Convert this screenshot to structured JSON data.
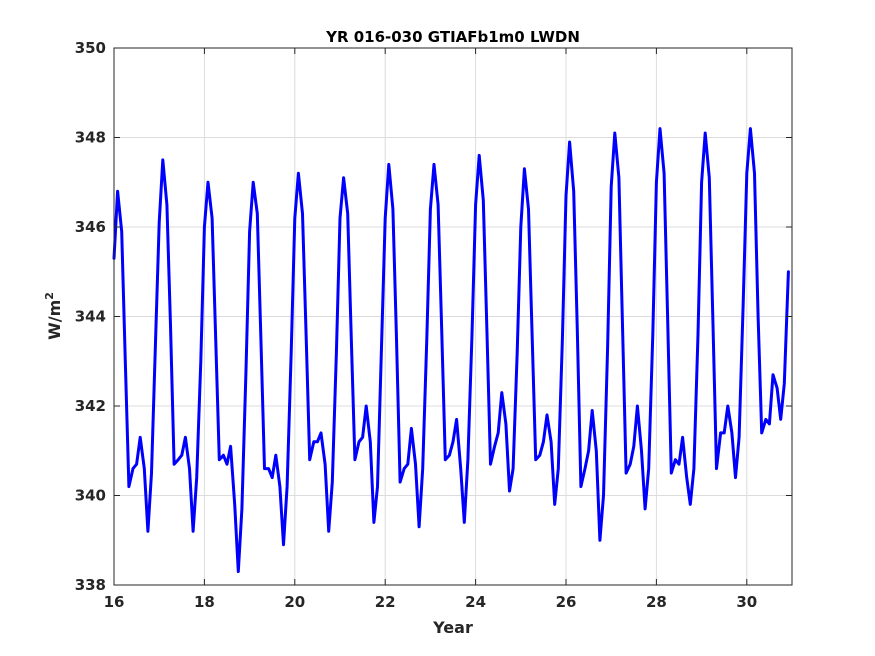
{
  "chart_data": {
    "type": "line",
    "title": "YR 016-030 GTIAFb1m0 LWDN",
    "xlabel": "Year",
    "ylabel": "W/m",
    "ylabel_superscript": "2",
    "xlim": [
      16,
      31
    ],
    "ylim": [
      338,
      350
    ],
    "xticks": [
      16,
      18,
      20,
      22,
      24,
      26,
      28,
      30
    ],
    "yticks": [
      338,
      340,
      342,
      344,
      346,
      348,
      350
    ],
    "grid": true,
    "legend": "none",
    "line_color": "#0000ff",
    "series": [
      {
        "x": [
          16.0,
          16.08,
          16.17,
          16.25,
          16.33,
          16.42,
          16.5,
          16.58,
          16.67,
          16.75,
          16.83,
          16.92,
          17.0,
          17.08,
          17.17,
          17.25,
          17.33,
          17.42,
          17.5,
          17.58,
          17.67,
          17.75,
          17.83,
          17.92,
          18.0,
          18.08,
          18.17,
          18.25,
          18.33,
          18.42,
          18.5,
          18.58,
          18.67,
          18.75,
          18.83,
          18.92,
          19.0,
          19.08,
          19.17,
          19.25,
          19.33,
          19.42,
          19.5,
          19.58,
          19.67,
          19.75,
          19.83,
          19.92,
          20.0,
          20.08,
          20.17,
          20.25,
          20.33,
          20.42,
          20.5,
          20.58,
          20.67,
          20.75,
          20.83,
          20.92,
          21.0,
          21.08,
          21.17,
          21.25,
          21.33,
          21.42,
          21.5,
          21.58,
          21.67,
          21.75,
          21.83,
          21.92,
          22.0,
          22.08,
          22.17,
          22.25,
          22.33,
          22.42,
          22.5,
          22.58,
          22.67,
          22.75,
          22.83,
          22.92,
          23.0,
          23.08,
          23.17,
          23.25,
          23.33,
          23.42,
          23.5,
          23.58,
          23.67,
          23.75,
          23.83,
          23.92,
          24.0,
          24.08,
          24.17,
          24.25,
          24.33,
          24.42,
          24.5,
          24.58,
          24.67,
          24.75,
          24.83,
          24.92,
          25.0,
          25.08,
          25.17,
          25.25,
          25.33,
          25.42,
          25.5,
          25.58,
          25.67,
          25.75,
          25.83,
          25.92,
          26.0,
          26.08,
          26.17,
          26.25,
          26.33,
          26.42,
          26.5,
          26.58,
          26.67,
          26.75,
          26.83,
          26.92,
          27.0,
          27.08,
          27.17,
          27.25,
          27.33,
          27.42,
          27.5,
          27.58,
          27.67,
          27.75,
          27.83,
          27.92,
          28.0,
          28.08,
          28.17,
          28.25,
          28.33,
          28.42,
          28.5,
          28.58,
          28.67,
          28.75,
          28.83,
          28.92,
          29.0,
          29.08,
          29.17,
          29.25,
          29.33,
          29.42,
          29.5,
          29.58,
          29.67,
          29.75,
          29.83,
          29.92,
          30.0,
          30.08,
          30.17,
          30.25,
          30.33,
          30.42,
          30.5,
          30.58,
          30.67,
          30.75,
          30.83,
          30.92
        ],
        "y": [
          345.3,
          346.8,
          345.9,
          343.0,
          340.2,
          340.6,
          340.7,
          341.3,
          340.6,
          339.2,
          340.5,
          343.5,
          346.1,
          347.5,
          346.5,
          343.8,
          340.7,
          340.8,
          340.9,
          341.3,
          340.6,
          339.2,
          340.4,
          343.0,
          346.0,
          347.0,
          346.2,
          343.5,
          340.8,
          340.9,
          340.7,
          341.1,
          339.8,
          338.3,
          339.7,
          342.8,
          345.9,
          347.0,
          346.3,
          343.5,
          340.6,
          340.6,
          340.4,
          340.9,
          340.2,
          338.9,
          340.2,
          343.2,
          346.2,
          347.2,
          346.3,
          343.6,
          340.8,
          341.2,
          341.2,
          341.4,
          340.7,
          339.2,
          340.3,
          343.2,
          346.2,
          347.1,
          346.3,
          343.5,
          340.8,
          341.2,
          341.3,
          342.0,
          341.2,
          339.4,
          340.2,
          343.4,
          346.2,
          347.4,
          346.4,
          343.5,
          340.3,
          340.6,
          340.7,
          341.5,
          340.7,
          339.3,
          340.6,
          343.5,
          346.4,
          347.4,
          346.5,
          343.7,
          340.8,
          340.9,
          341.2,
          341.7,
          340.6,
          339.4,
          340.8,
          343.6,
          346.5,
          347.6,
          346.6,
          343.7,
          340.7,
          341.1,
          341.4,
          342.3,
          341.6,
          340.1,
          340.6,
          343.2,
          346.0,
          347.3,
          346.4,
          343.6,
          340.8,
          340.9,
          341.2,
          341.8,
          341.2,
          339.8,
          340.6,
          343.5,
          346.7,
          347.9,
          346.8,
          343.7,
          340.2,
          340.6,
          341.0,
          341.9,
          341.0,
          339.0,
          340.0,
          343.3,
          346.9,
          348.1,
          347.1,
          343.8,
          340.5,
          340.7,
          341.1,
          342.0,
          341.0,
          339.7,
          340.6,
          343.6,
          347.0,
          348.2,
          347.2,
          343.9,
          340.5,
          340.8,
          340.7,
          341.3,
          340.4,
          339.8,
          340.6,
          343.6,
          347.0,
          348.1,
          347.1,
          343.9,
          340.6,
          341.4,
          341.4,
          342.0,
          341.4,
          340.4,
          341.3,
          344.3,
          347.2,
          348.2,
          347.2,
          344.0,
          341.4,
          341.7,
          341.6,
          342.7,
          342.4,
          341.7,
          342.5,
          345.0
        ]
      }
    ]
  }
}
